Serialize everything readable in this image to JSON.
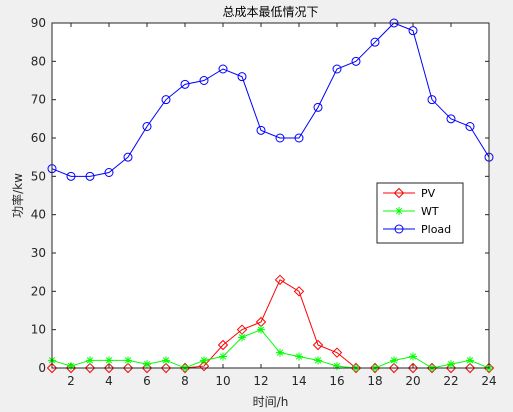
{
  "chart_data": {
    "type": "line",
    "title": "总成本最低情况下",
    "xlabel": "时间/h",
    "ylabel": "功率/kw",
    "xlim": [
      1,
      24
    ],
    "ylim": [
      0,
      90
    ],
    "xticks": [
      2,
      4,
      6,
      8,
      10,
      12,
      14,
      16,
      18,
      20,
      22,
      24
    ],
    "yticks": [
      0,
      10,
      20,
      30,
      40,
      50,
      60,
      70,
      80,
      90
    ],
    "x": [
      1,
      2,
      3,
      4,
      5,
      6,
      7,
      8,
      9,
      10,
      11,
      12,
      13,
      14,
      15,
      16,
      17,
      18,
      19,
      20,
      21,
      22,
      23,
      24
    ],
    "grid": false,
    "legend_position": "center-right",
    "series": [
      {
        "name": "PV",
        "color": "#ff0000",
        "marker": "diamond",
        "values": [
          0,
          0,
          0,
          0,
          0,
          0,
          0,
          0,
          0.5,
          6,
          10,
          12,
          23,
          20,
          6,
          4,
          0,
          0,
          0,
          0,
          0,
          0,
          0,
          0
        ]
      },
      {
        "name": "WT",
        "color": "#00ff00",
        "marker": "star",
        "values": [
          2,
          0.5,
          2,
          2,
          2,
          1,
          2,
          0,
          2,
          3,
          8,
          10,
          4,
          3,
          2,
          0.5,
          0,
          0,
          2,
          3,
          0,
          1,
          2,
          0
        ]
      },
      {
        "name": "Pload",
        "color": "#0000ff",
        "marker": "circle",
        "values": [
          52,
          50,
          50,
          51,
          55,
          63,
          70,
          74,
          75,
          78,
          76,
          62,
          60,
          60,
          68,
          78,
          80,
          85,
          90,
          88,
          70,
          65,
          63,
          55
        ]
      }
    ]
  }
}
